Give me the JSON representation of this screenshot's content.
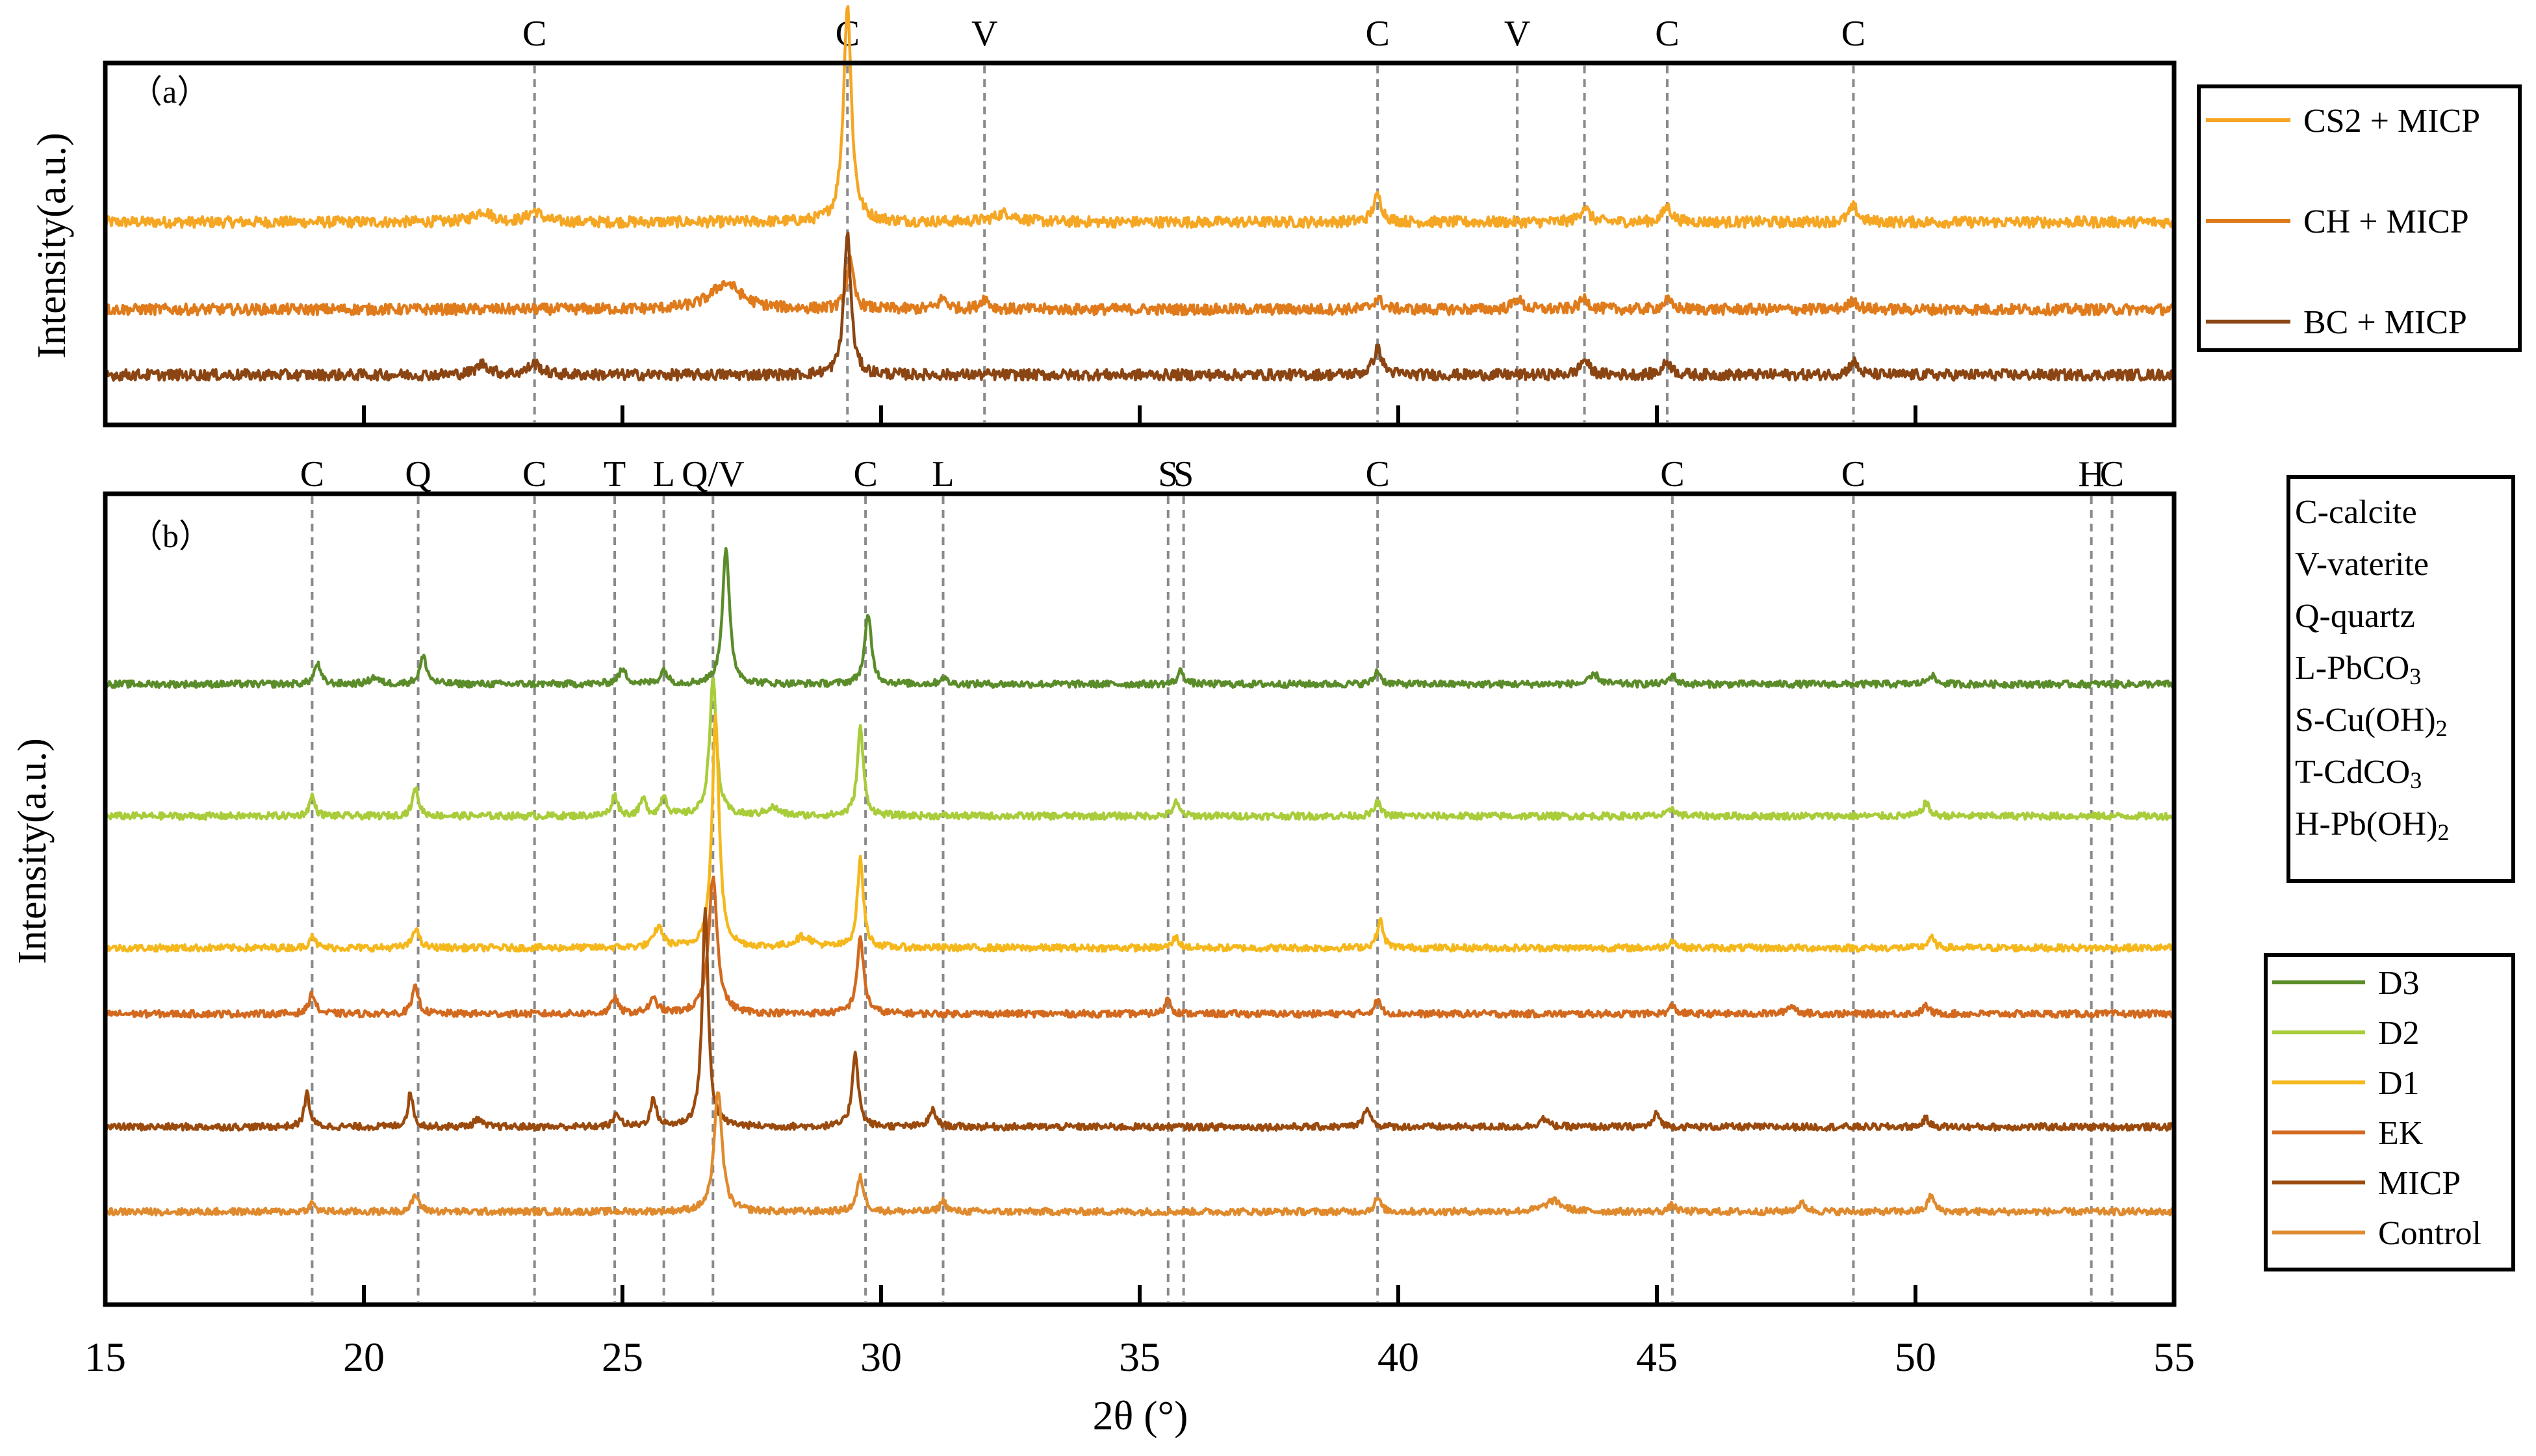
{
  "figure": {
    "xlabel": "2θ (°)",
    "x_ticks": [
      15,
      20,
      25,
      30,
      35,
      40,
      45,
      50,
      55
    ],
    "xlim": [
      15,
      55
    ]
  },
  "chart_data": [
    {
      "type": "line",
      "panel_label": "（a）",
      "ylabel": "Intensity(a.u.)",
      "xlim": [
        15,
        55
      ],
      "grid": false,
      "legend_position": "right",
      "phase_markers": [
        {
          "label": "C",
          "x": 23.3
        },
        {
          "label": "C",
          "x": 29.35
        },
        {
          "label": "V",
          "x": 32.0
        },
        {
          "label": "C",
          "x": 39.6
        },
        {
          "label": "V",
          "x": 42.3
        },
        {
          "label": "",
          "x": 43.6
        },
        {
          "label": "C",
          "x": 45.2
        },
        {
          "label": "C",
          "x": 48.8
        }
      ],
      "series": [
        {
          "name": "CS2 + MICP",
          "color": "#F5A623",
          "offset": 2.6,
          "peaks": [
            [
              29.35,
              1.0,
              0.09
            ],
            [
              22.3,
              0.05,
              0.2
            ],
            [
              23.3,
              0.05,
              0.15
            ],
            [
              39.6,
              0.12,
              0.1
            ],
            [
              43.6,
              0.07,
              0.1
            ],
            [
              45.2,
              0.07,
              0.1
            ],
            [
              48.8,
              0.07,
              0.1
            ],
            [
              32.4,
              0.04,
              0.25
            ]
          ]
        },
        {
          "name": "CH + MICP",
          "color": "#E07B1C",
          "offset": 1.4,
          "peaks": [
            [
              27.0,
              0.12,
              0.35
            ],
            [
              29.4,
              0.22,
              0.08
            ],
            [
              31.2,
              0.05,
              0.1
            ],
            [
              32.0,
              0.05,
              0.1
            ],
            [
              39.6,
              0.05,
              0.1
            ],
            [
              42.3,
              0.05,
              0.1
            ],
            [
              43.6,
              0.05,
              0.1
            ],
            [
              45.2,
              0.04,
              0.1
            ],
            [
              48.8,
              0.04,
              0.1
            ]
          ]
        },
        {
          "name": "BC + MICP",
          "color": "#8B4513",
          "offset": 0.5,
          "peaks": [
            [
              29.35,
              0.65,
              0.08
            ],
            [
              22.3,
              0.05,
              0.15
            ],
            [
              23.3,
              0.05,
              0.15
            ],
            [
              39.6,
              0.12,
              0.1
            ],
            [
              43.6,
              0.07,
              0.1
            ],
            [
              45.2,
              0.06,
              0.1
            ],
            [
              48.8,
              0.06,
              0.1
            ]
          ]
        }
      ]
    },
    {
      "type": "line",
      "panel_label": "（b）",
      "ylabel": "Intensity(a.u.)",
      "xlim": [
        15,
        55
      ],
      "grid": false,
      "legend_position": "right",
      "phase_legend": [
        "C-calcite",
        "V-vaterite",
        "Q-quartz",
        "L-PbCO3",
        "S-Cu(OH)2",
        "T-CdCO3",
        "H-Pb(OH)2"
      ],
      "phase_markers": [
        {
          "label": "C",
          "x": 19.0
        },
        {
          "label": "Q",
          "x": 21.05
        },
        {
          "label": "C",
          "x": 23.3
        },
        {
          "label": "T",
          "x": 24.85
        },
        {
          "label": "L",
          "x": 25.8
        },
        {
          "label": "Q/V",
          "x": 26.75
        },
        {
          "label": "C",
          "x": 29.7
        },
        {
          "label": "L",
          "x": 31.2
        },
        {
          "label": "S",
          "x": 35.55
        },
        {
          "label": "S",
          "x": 35.85
        },
        {
          "label": "C",
          "x": 39.6
        },
        {
          "label": "C",
          "x": 45.3
        },
        {
          "label": "C",
          "x": 48.8
        },
        {
          "label": "H",
          "x": 53.4
        },
        {
          "label": "C",
          "x": 53.8
        }
      ],
      "series": [
        {
          "name": "D3",
          "color": "#5B8C2A",
          "offset": 6.6,
          "peaks": [
            [
              27.0,
              1.0,
              0.08
            ],
            [
              29.75,
              0.5,
              0.08
            ],
            [
              21.15,
              0.2,
              0.08
            ],
            [
              19.1,
              0.15,
              0.07
            ],
            [
              25.0,
              0.1,
              0.1
            ],
            [
              25.8,
              0.1,
              0.08
            ],
            [
              35.8,
              0.1,
              0.07
            ],
            [
              39.6,
              0.1,
              0.07
            ],
            [
              43.8,
              0.07,
              0.1
            ],
            [
              45.3,
              0.07,
              0.07
            ],
            [
              50.3,
              0.07,
              0.08
            ],
            [
              20.2,
              0.05,
              0.1
            ],
            [
              31.2,
              0.05,
              0.07
            ]
          ]
        },
        {
          "name": "D2",
          "color": "#A8CC3A",
          "offset": 5.2,
          "peaks": [
            [
              26.75,
              1.0,
              0.08
            ],
            [
              29.6,
              0.65,
              0.07
            ],
            [
              21.0,
              0.2,
              0.07
            ],
            [
              19.0,
              0.15,
              0.06
            ],
            [
              24.85,
              0.15,
              0.07
            ],
            [
              25.4,
              0.12,
              0.07
            ],
            [
              25.8,
              0.15,
              0.07
            ],
            [
              35.7,
              0.1,
              0.07
            ],
            [
              39.6,
              0.1,
              0.07
            ],
            [
              50.2,
              0.1,
              0.07
            ],
            [
              27.9,
              0.06,
              0.15
            ],
            [
              45.3,
              0.06,
              0.07
            ]
          ]
        },
        {
          "name": "D1",
          "color": "#F5B81C",
          "offset": 3.8,
          "peaks": [
            [
              26.8,
              1.7,
              0.08
            ],
            [
              29.6,
              0.65,
              0.07
            ],
            [
              21.0,
              0.15,
              0.07
            ],
            [
              19.0,
              0.1,
              0.06
            ],
            [
              25.7,
              0.15,
              0.1
            ],
            [
              39.65,
              0.2,
              0.07
            ],
            [
              35.7,
              0.08,
              0.07
            ],
            [
              28.5,
              0.08,
              0.2
            ],
            [
              50.3,
              0.08,
              0.07
            ],
            [
              45.3,
              0.06,
              0.07
            ]
          ]
        },
        {
          "name": "EK",
          "color": "#D2691E",
          "offset": 3.1,
          "peaks": [
            [
              26.75,
              1.0,
              0.1
            ],
            [
              29.6,
              0.55,
              0.08
            ],
            [
              21.0,
              0.2,
              0.07
            ],
            [
              19.0,
              0.15,
              0.07
            ],
            [
              24.85,
              0.12,
              0.07
            ],
            [
              25.6,
              0.1,
              0.1
            ],
            [
              35.55,
              0.12,
              0.06
            ],
            [
              39.6,
              0.1,
              0.07
            ],
            [
              45.3,
              0.06,
              0.07
            ],
            [
              47.6,
              0.06,
              0.1
            ],
            [
              50.2,
              0.06,
              0.07
            ]
          ]
        },
        {
          "name": "MICP",
          "color": "#9B4A0E",
          "offset": 1.9,
          "peaks": [
            [
              26.6,
              1.6,
              0.07
            ],
            [
              29.5,
              0.55,
              0.07
            ],
            [
              18.9,
              0.25,
              0.06
            ],
            [
              20.9,
              0.25,
              0.06
            ],
            [
              25.6,
              0.2,
              0.07
            ],
            [
              31.0,
              0.12,
              0.08
            ],
            [
              39.4,
              0.15,
              0.07
            ],
            [
              24.9,
              0.1,
              0.07
            ],
            [
              45.0,
              0.1,
              0.07
            ],
            [
              22.2,
              0.06,
              0.08
            ],
            [
              42.8,
              0.06,
              0.1
            ],
            [
              50.2,
              0.06,
              0.07
            ]
          ]
        },
        {
          "name": "Control",
          "color": "#E08A2E",
          "offset": 1.0,
          "peaks": [
            [
              26.85,
              0.9,
              0.09
            ],
            [
              29.6,
              0.25,
              0.08
            ],
            [
              21.0,
              0.12,
              0.08
            ],
            [
              19.0,
              0.06,
              0.07
            ],
            [
              31.2,
              0.08,
              0.07
            ],
            [
              39.6,
              0.1,
              0.07
            ],
            [
              43.0,
              0.08,
              0.2
            ],
            [
              47.8,
              0.06,
              0.1
            ],
            [
              50.3,
              0.12,
              0.07
            ],
            [
              45.3,
              0.05,
              0.07
            ]
          ]
        }
      ]
    }
  ]
}
